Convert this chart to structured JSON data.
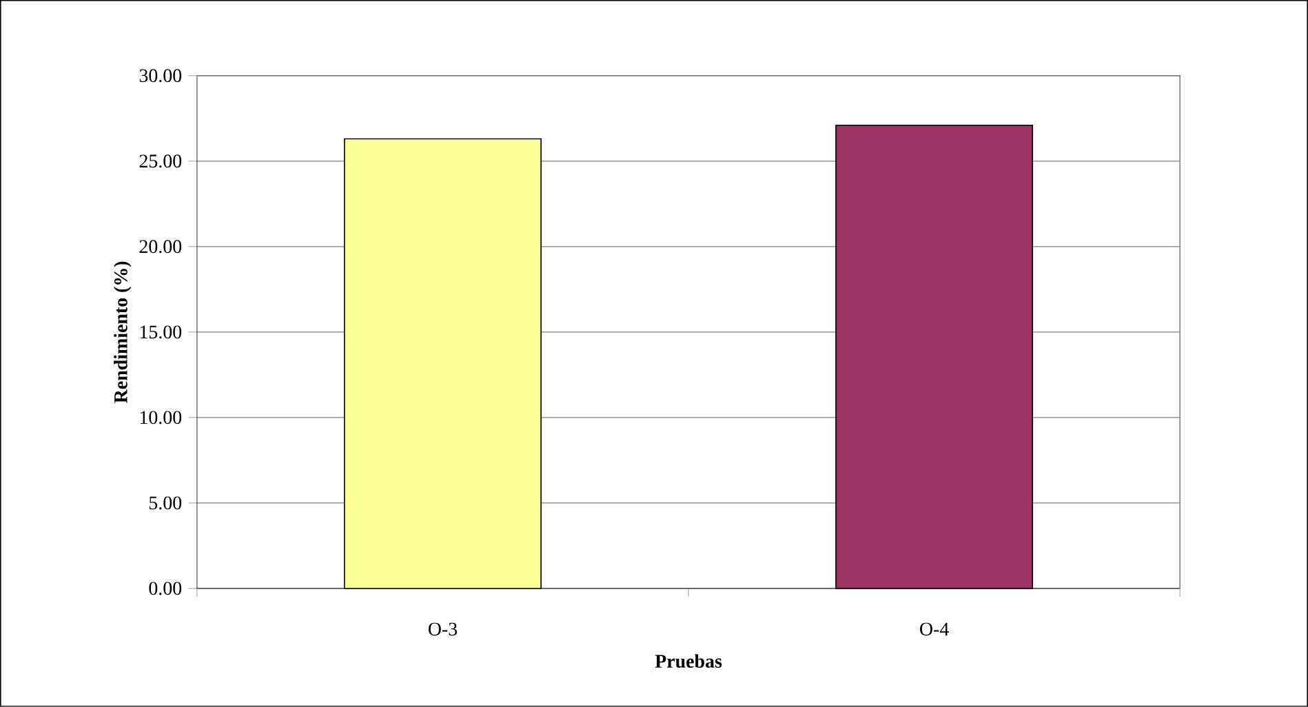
{
  "chart_data": {
    "type": "bar",
    "xlabel": "Pruebas",
    "ylabel": "Rendimiento (%)",
    "categories": [
      "O-3",
      "O-4"
    ],
    "values": [
      26.3,
      27.1
    ],
    "colors": [
      "#ffff99",
      "#993366"
    ],
    "ylim": [
      0,
      30
    ],
    "yticks": [
      {
        "value": 0,
        "label": "0.00"
      },
      {
        "value": 5,
        "label": "5.00"
      },
      {
        "value": 10,
        "label": "10.00"
      },
      {
        "value": 15,
        "label": "15.00"
      },
      {
        "value": 20,
        "label": "20.00"
      },
      {
        "value": 25,
        "label": "25.00"
      },
      {
        "value": 30,
        "label": "30.00"
      }
    ],
    "grid": "y"
  }
}
